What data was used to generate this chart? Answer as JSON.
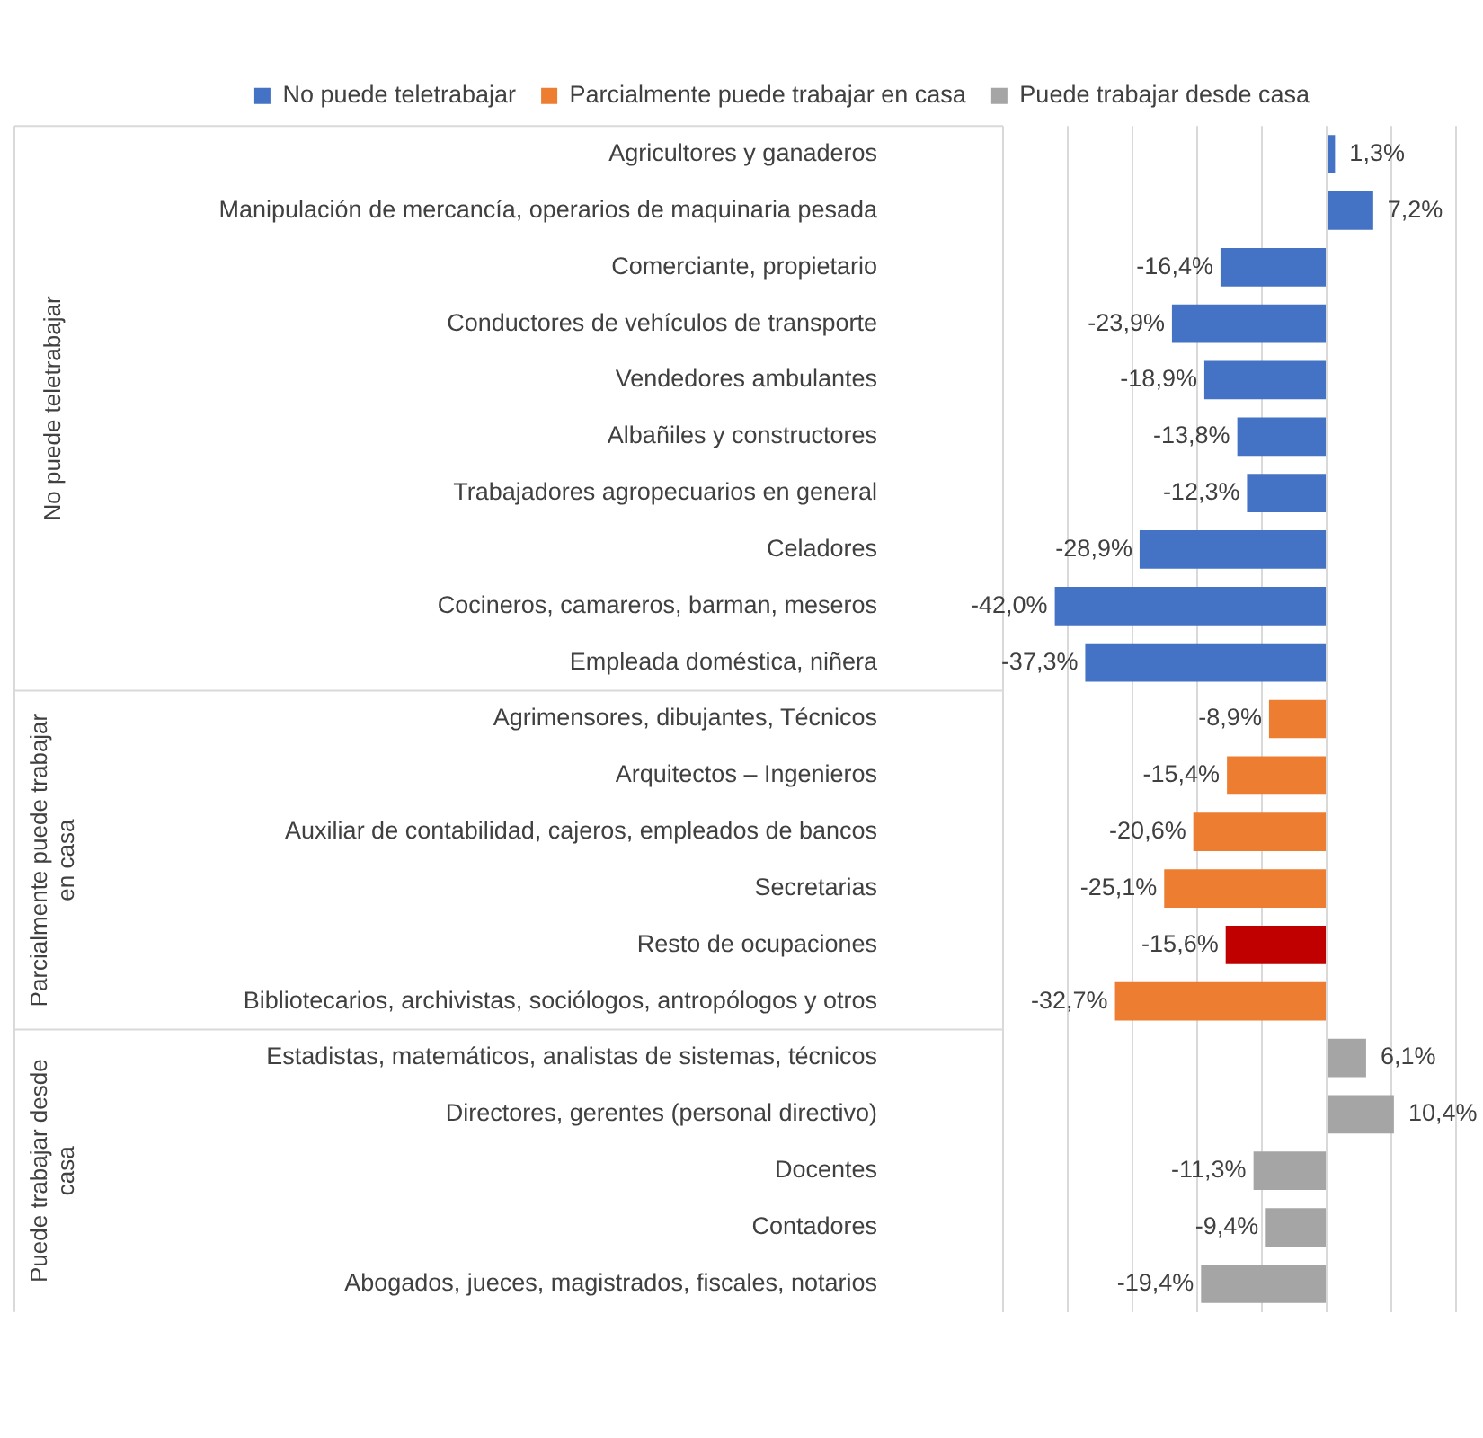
{
  "chart_data": {
    "type": "bar",
    "orientation": "horizontal",
    "categories": [
      "Agricultores y ganaderos",
      "Manipulación de mercancía, operarios de maquinaria pesada",
      "Comerciante, propietario",
      "Conductores de vehículos de transporte",
      "Vendedores ambulantes",
      "Albañiles y constructores",
      "Trabajadores agropecuarios en general",
      "Celadores",
      "Cocineros, camareros, barman, meseros",
      "Empleada doméstica, niñera",
      "Agrimensores, dibujantes, Técnicos",
      "Arquitectos – Ingenieros",
      "Auxiliar de contabilidad, cajeros, empleados de bancos",
      "Secretarias",
      "Resto de ocupaciones",
      "Bibliotecarios, archivistas, sociólogos, antropólogos y otros",
      "Estadistas, matemáticos, analistas de sistemas, técnicos",
      "Directores, gerentes (personal directivo)",
      "Docentes",
      "Contadores",
      "Abogados, jueces, magistrados, fiscales, notarios"
    ],
    "series": [
      {
        "name": "No puede teletrabajar",
        "color": "#4472c4",
        "values": [
          1.3,
          7.2,
          -16.4,
          -23.9,
          -18.9,
          -13.8,
          -12.3,
          -28.9,
          -42.0,
          -37.3,
          null,
          null,
          null,
          null,
          null,
          null,
          null,
          null,
          null,
          null,
          null
        ],
        "value_labels": [
          "1,3%",
          "7,2%",
          "-16,4%",
          "-23,9%",
          "-18,9%",
          "-13,8%",
          "-12,3%",
          "-28,9%",
          "-42,0%",
          "-37,3%",
          null,
          null,
          null,
          null,
          null,
          null,
          null,
          null,
          null,
          null,
          null
        ]
      },
      {
        "name": "Parcialmente puede trabajar en casa",
        "color": "#ed7d31",
        "colors": [
          null,
          null,
          null,
          null,
          null,
          null,
          null,
          null,
          null,
          null,
          null,
          null,
          null,
          null,
          "#c00000",
          null,
          null,
          null,
          null,
          null,
          null
        ],
        "values": [
          null,
          null,
          null,
          null,
          null,
          null,
          null,
          null,
          null,
          null,
          -8.9,
          -15.4,
          -20.6,
          -25.1,
          -15.6,
          -32.7,
          null,
          null,
          null,
          null,
          null
        ],
        "value_labels": [
          null,
          null,
          null,
          null,
          null,
          null,
          null,
          null,
          null,
          null,
          "-8,9%",
          "-15,4%",
          "-20,6%",
          "-25,1%",
          "-15,6%",
          "-32,7%",
          null,
          null,
          null,
          null,
          null
        ]
      },
      {
        "name": "Puede trabajar desde casa",
        "color": "#a5a5a5",
        "values": [
          null,
          null,
          null,
          null,
          null,
          null,
          null,
          null,
          null,
          null,
          null,
          null,
          null,
          null,
          null,
          null,
          6.1,
          10.4,
          -11.3,
          -9.4,
          -19.4
        ],
        "value_labels": [
          null,
          null,
          null,
          null,
          null,
          null,
          null,
          null,
          null,
          null,
          null,
          null,
          null,
          null,
          null,
          null,
          "6,1%",
          "10,4%",
          "-11,3%",
          "-9,4%",
          "-19,4%"
        ]
      }
    ],
    "xlim": [
      -50,
      20
    ],
    "xticks": [
      {
        "value": -50,
        "label": null
      },
      {
        "value": -40,
        "label": null
      },
      {
        "value": -30,
        "label": null
      },
      {
        "value": -20,
        "label": null
      },
      {
        "value": -10,
        "label": null
      },
      {
        "value": 0,
        "label": null
      },
      {
        "value": 10,
        "label": null
      },
      {
        "value": 20,
        "label": null
      }
    ],
    "tick_labels": "y",
    "grid": "x",
    "legend": "top",
    "annotations": [
      "No puede teletrabajar",
      "Parcialmente puede trabajar en casa",
      "Puede trabajar desde casa"
    ]
  }
}
